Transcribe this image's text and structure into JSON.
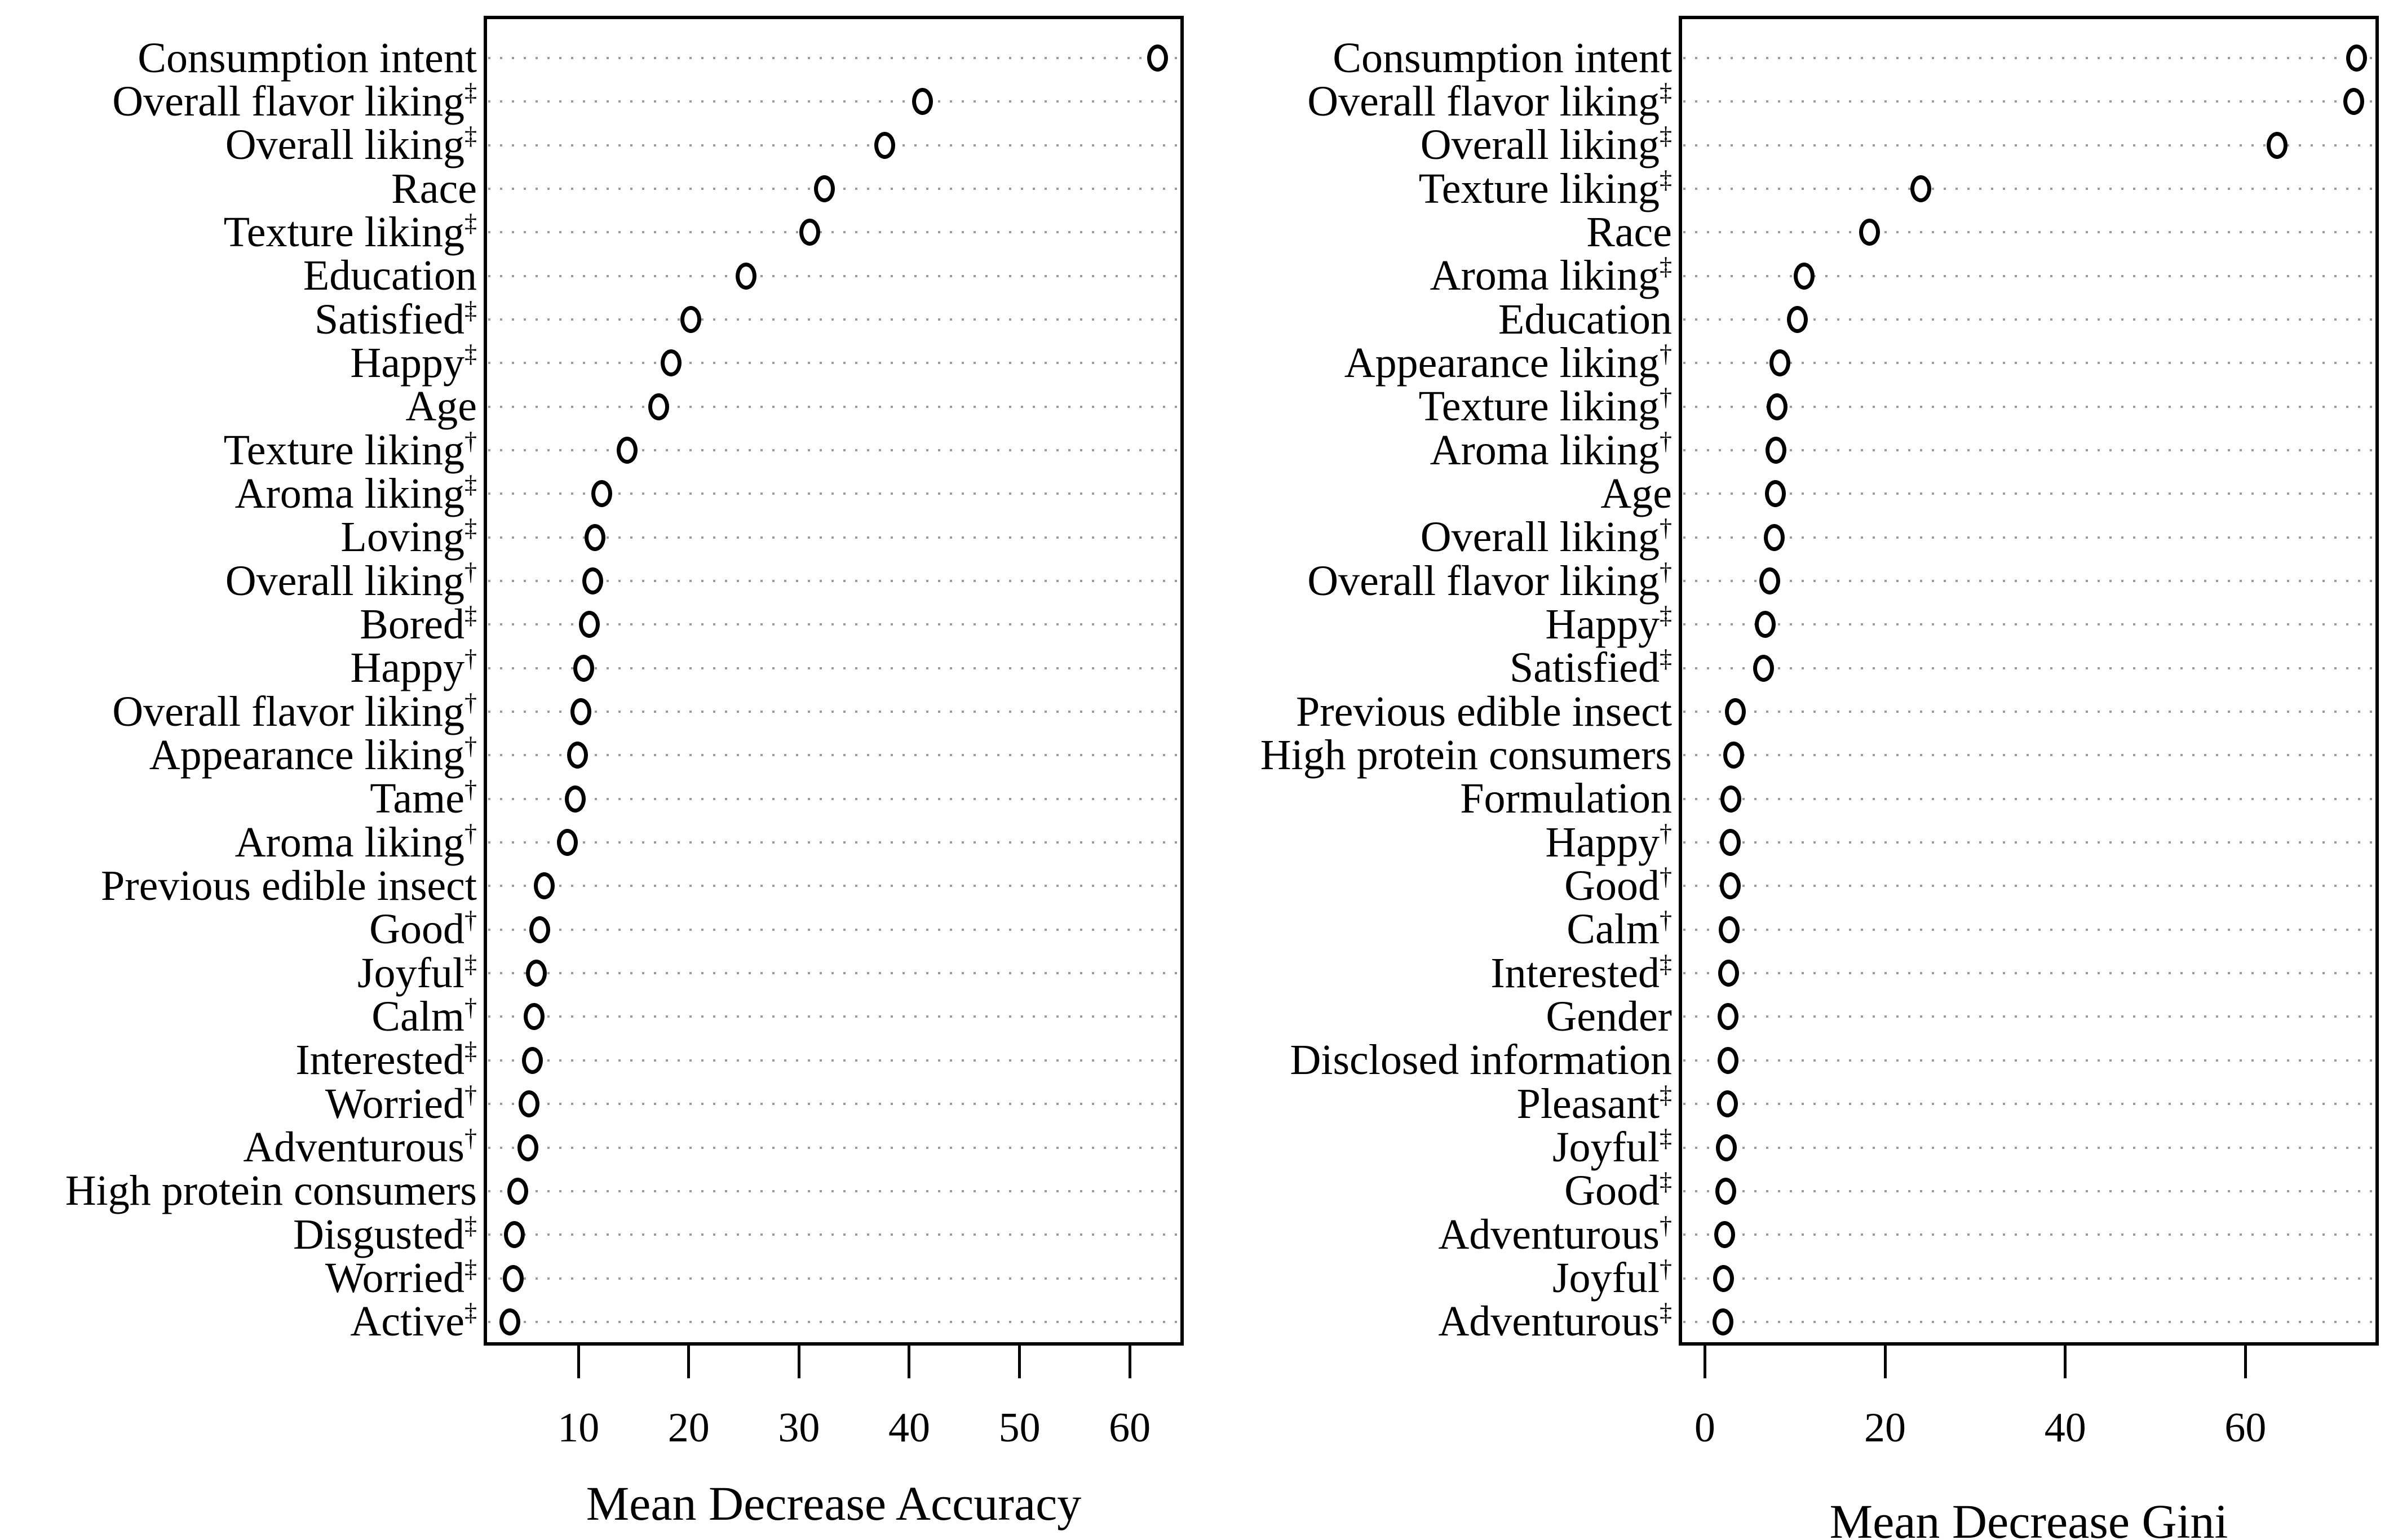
{
  "figure": {
    "background": "#ffffff",
    "point_color": "#000000",
    "grid_color": "#9b9b9b"
  },
  "chart_data": [
    {
      "type": "scatter",
      "variant": "dot-chart",
      "title": "",
      "xlabel": "Mean Decrease Accuracy",
      "ylabel": "",
      "grid": "dotted-horizontal",
      "legend": "none",
      "axis": {
        "min": 1.4,
        "max": 64.9,
        "ticks": [
          10,
          20,
          30,
          40,
          50,
          60
        ]
      },
      "items": [
        {
          "label": "Consumption intent",
          "marker": "",
          "value": 62.5
        },
        {
          "label": "Overall flavor liking",
          "marker": "‡",
          "value": 41.2
        },
        {
          "label": "Overall liking",
          "marker": "‡",
          "value": 37.8
        },
        {
          "label": "Race",
          "marker": "",
          "value": 32.3
        },
        {
          "label": "Texture liking",
          "marker": "‡",
          "value": 31.0
        },
        {
          "label": "Education",
          "marker": "",
          "value": 25.2
        },
        {
          "label": "Satisfied",
          "marker": "‡",
          "value": 20.2
        },
        {
          "label": "Happy",
          "marker": "‡",
          "value": 18.4
        },
        {
          "label": "Age",
          "marker": "",
          "value": 17.3
        },
        {
          "label": "Texture liking",
          "marker": "†",
          "value": 14.4
        },
        {
          "label": "Aroma liking",
          "marker": "‡",
          "value": 12.1
        },
        {
          "label": "Loving",
          "marker": "‡",
          "value": 11.5
        },
        {
          "label": "Overall liking",
          "marker": "†",
          "value": 11.3
        },
        {
          "label": "Bored",
          "marker": "‡",
          "value": 11.0
        },
        {
          "label": "Happy",
          "marker": "†",
          "value": 10.5
        },
        {
          "label": "Overall flavor liking",
          "marker": "†",
          "value": 10.2
        },
        {
          "label": "Appearance liking",
          "marker": "†",
          "value": 9.9
        },
        {
          "label": "Tame",
          "marker": "†",
          "value": 9.7
        },
        {
          "label": "Aroma liking",
          "marker": "†",
          "value": 9.0
        },
        {
          "label": "Previous edible insect",
          "marker": "",
          "value": 6.9
        },
        {
          "label": "Good",
          "marker": "†",
          "value": 6.5
        },
        {
          "label": "Joyful",
          "marker": "‡",
          "value": 6.2
        },
        {
          "label": "Calm",
          "marker": "†",
          "value": 6.0
        },
        {
          "label": "Interested",
          "marker": "‡",
          "value": 5.8
        },
        {
          "label": "Worried",
          "marker": "†",
          "value": 5.5
        },
        {
          "label": "Adventurous",
          "marker": "†",
          "value": 5.4
        },
        {
          "label": "High protein consumers",
          "marker": "",
          "value": 4.5
        },
        {
          "label": "Disgusted",
          "marker": "‡",
          "value": 4.2
        },
        {
          "label": "Worried",
          "marker": "‡",
          "value": 4.1
        },
        {
          "label": "Active",
          "marker": "‡",
          "value": 3.8
        }
      ]
    },
    {
      "type": "scatter",
      "variant": "dot-chart",
      "title": "",
      "xlabel": "Mean Decrease Gini",
      "ylabel": "",
      "grid": "dotted-horizontal",
      "legend": "none",
      "axis": {
        "min": -2.9,
        "max": 74.8,
        "ticks": [
          0,
          20,
          40,
          60
        ]
      },
      "items": [
        {
          "label": "Consumption intent",
          "marker": "",
          "value": 72.3
        },
        {
          "label": "Overall flavor liking",
          "marker": "‡",
          "value": 72.0
        },
        {
          "label": "Overall liking",
          "marker": "‡",
          "value": 63.5
        },
        {
          "label": "Texture liking",
          "marker": "‡",
          "value": 24.0
        },
        {
          "label": "Race",
          "marker": "",
          "value": 18.3
        },
        {
          "label": "Aroma liking",
          "marker": "‡",
          "value": 11.0
        },
        {
          "label": "Education",
          "marker": "",
          "value": 10.3
        },
        {
          "label": "Appearance liking",
          "marker": "†",
          "value": 8.3
        },
        {
          "label": "Texture liking",
          "marker": "†",
          "value": 8.0
        },
        {
          "label": "Aroma liking",
          "marker": "†",
          "value": 7.9
        },
        {
          "label": "Age",
          "marker": "",
          "value": 7.8
        },
        {
          "label": "Overall liking",
          "marker": "†",
          "value": 7.7
        },
        {
          "label": "Overall flavor liking",
          "marker": "†",
          "value": 7.2
        },
        {
          "label": "Happy",
          "marker": "‡",
          "value": 6.7
        },
        {
          "label": "Satisfied",
          "marker": "‡",
          "value": 6.5
        },
        {
          "label": "Previous edible insect",
          "marker": "",
          "value": 3.4
        },
        {
          "label": "High protein consumers",
          "marker": "",
          "value": 3.2
        },
        {
          "label": "Formulation",
          "marker": "",
          "value": 2.9
        },
        {
          "label": "Happy",
          "marker": "†",
          "value": 2.85
        },
        {
          "label": "Good",
          "marker": "†",
          "value": 2.8
        },
        {
          "label": "Calm",
          "marker": "†",
          "value": 2.7
        },
        {
          "label": "Interested",
          "marker": "‡",
          "value": 2.65
        },
        {
          "label": "Gender",
          "marker": "",
          "value": 2.6
        },
        {
          "label": "Disclosed information",
          "marker": "",
          "value": 2.55
        },
        {
          "label": "Pleasant",
          "marker": "‡",
          "value": 2.5
        },
        {
          "label": "Joyful",
          "marker": "‡",
          "value": 2.4
        },
        {
          "label": "Good",
          "marker": "‡",
          "value": 2.3
        },
        {
          "label": "Adventurous",
          "marker": "†",
          "value": 2.2
        },
        {
          "label": "Joyful",
          "marker": "†",
          "value": 2.1
        },
        {
          "label": "Adventurous",
          "marker": "‡",
          "value": 2.0
        }
      ]
    }
  ]
}
